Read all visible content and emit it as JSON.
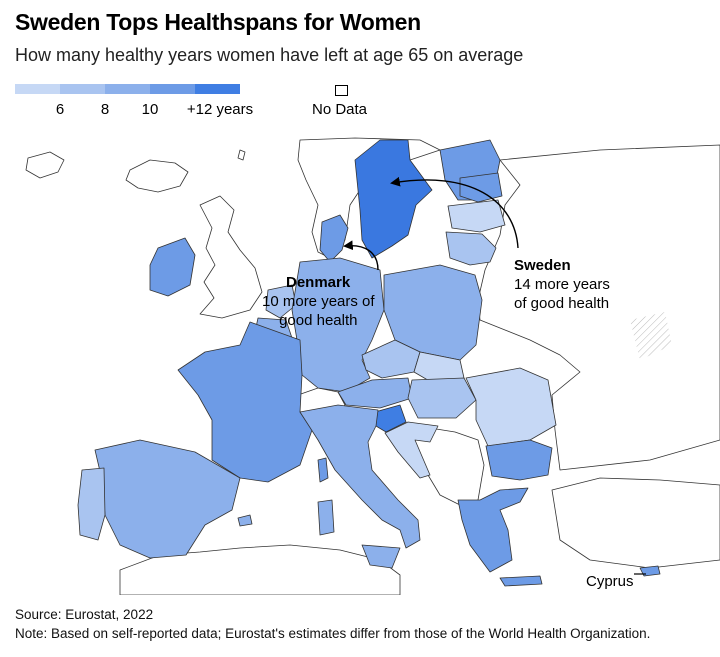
{
  "header": {
    "title": "Sweden Tops Healthspans for Women",
    "subtitle": "How many healthy years women have left at age 65 on average"
  },
  "legend": {
    "colors": [
      "#c6d8f5",
      "#a9c4f0",
      "#8cb0eb",
      "#6d9be6",
      "#3f7ee3"
    ],
    "ticks": [
      "6",
      "8",
      "10",
      "+12 years"
    ],
    "no_data_label": "No Data"
  },
  "annotations": {
    "denmark": {
      "name": "Denmark",
      "line1": "10 more years of",
      "line2": "good health"
    },
    "sweden": {
      "name": "Sweden",
      "line1": "14 more years",
      "line2": "of good health"
    },
    "cyprus": {
      "name": "Cyprus"
    }
  },
  "footer": {
    "source": "Source: Eurostat, 2022",
    "note": "Note: Based on self-reported data; Eurostat's estimates differ from those of the World Health Organization."
  }
}
